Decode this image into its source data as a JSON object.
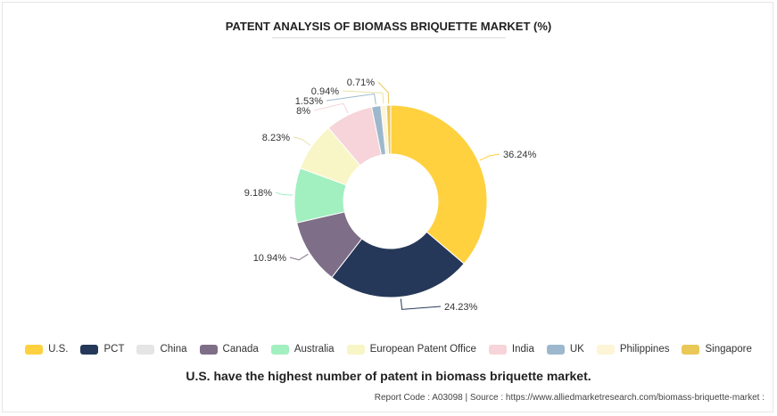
{
  "header": {
    "title": "PATENT ANALYSIS OF BIOMASS BRIQUETTE MARKET (%)"
  },
  "chart_data": {
    "type": "pie",
    "variant": "donut",
    "legend_placement": "bottom",
    "slices": [
      {
        "name": "U.S.",
        "value": 36.24,
        "label": "36.24%",
        "color": "#FFD13F"
      },
      {
        "name": "PCT",
        "value": 24.23,
        "label": "24.23%",
        "color": "#263859"
      },
      {
        "name": "China",
        "value": 0,
        "label": "",
        "color": "#E5E5E5"
      },
      {
        "name": "Canada",
        "value": 10.94,
        "label": "10.94%",
        "color": "#7E6E87"
      },
      {
        "name": "Australia",
        "value": 9.18,
        "label": "9.18%",
        "color": "#A2EFC0"
      },
      {
        "name": "European Patent Office",
        "value": 8.23,
        "label": "8.23%",
        "color": "#F8F6C6"
      },
      {
        "name": "India",
        "value": 8.0,
        "label": "8%",
        "color": "#F6D4D9"
      },
      {
        "name": "UK",
        "value": 1.53,
        "label": "1.53%",
        "color": "#9DB8CC"
      },
      {
        "name": "Philippines",
        "value": 0.94,
        "label": "0.94%",
        "color": "#FDF5D6"
      },
      {
        "name": "Singapore",
        "value": 0.71,
        "label": "0.71%",
        "color": "#EAC858"
      }
    ]
  },
  "caption": "U.S. have the highest number of patent in biomass briquette market.",
  "footer": "Report Code : A03098  |  Source : https://www.alliedmarketresearch.com/biomass-briquette-market :"
}
